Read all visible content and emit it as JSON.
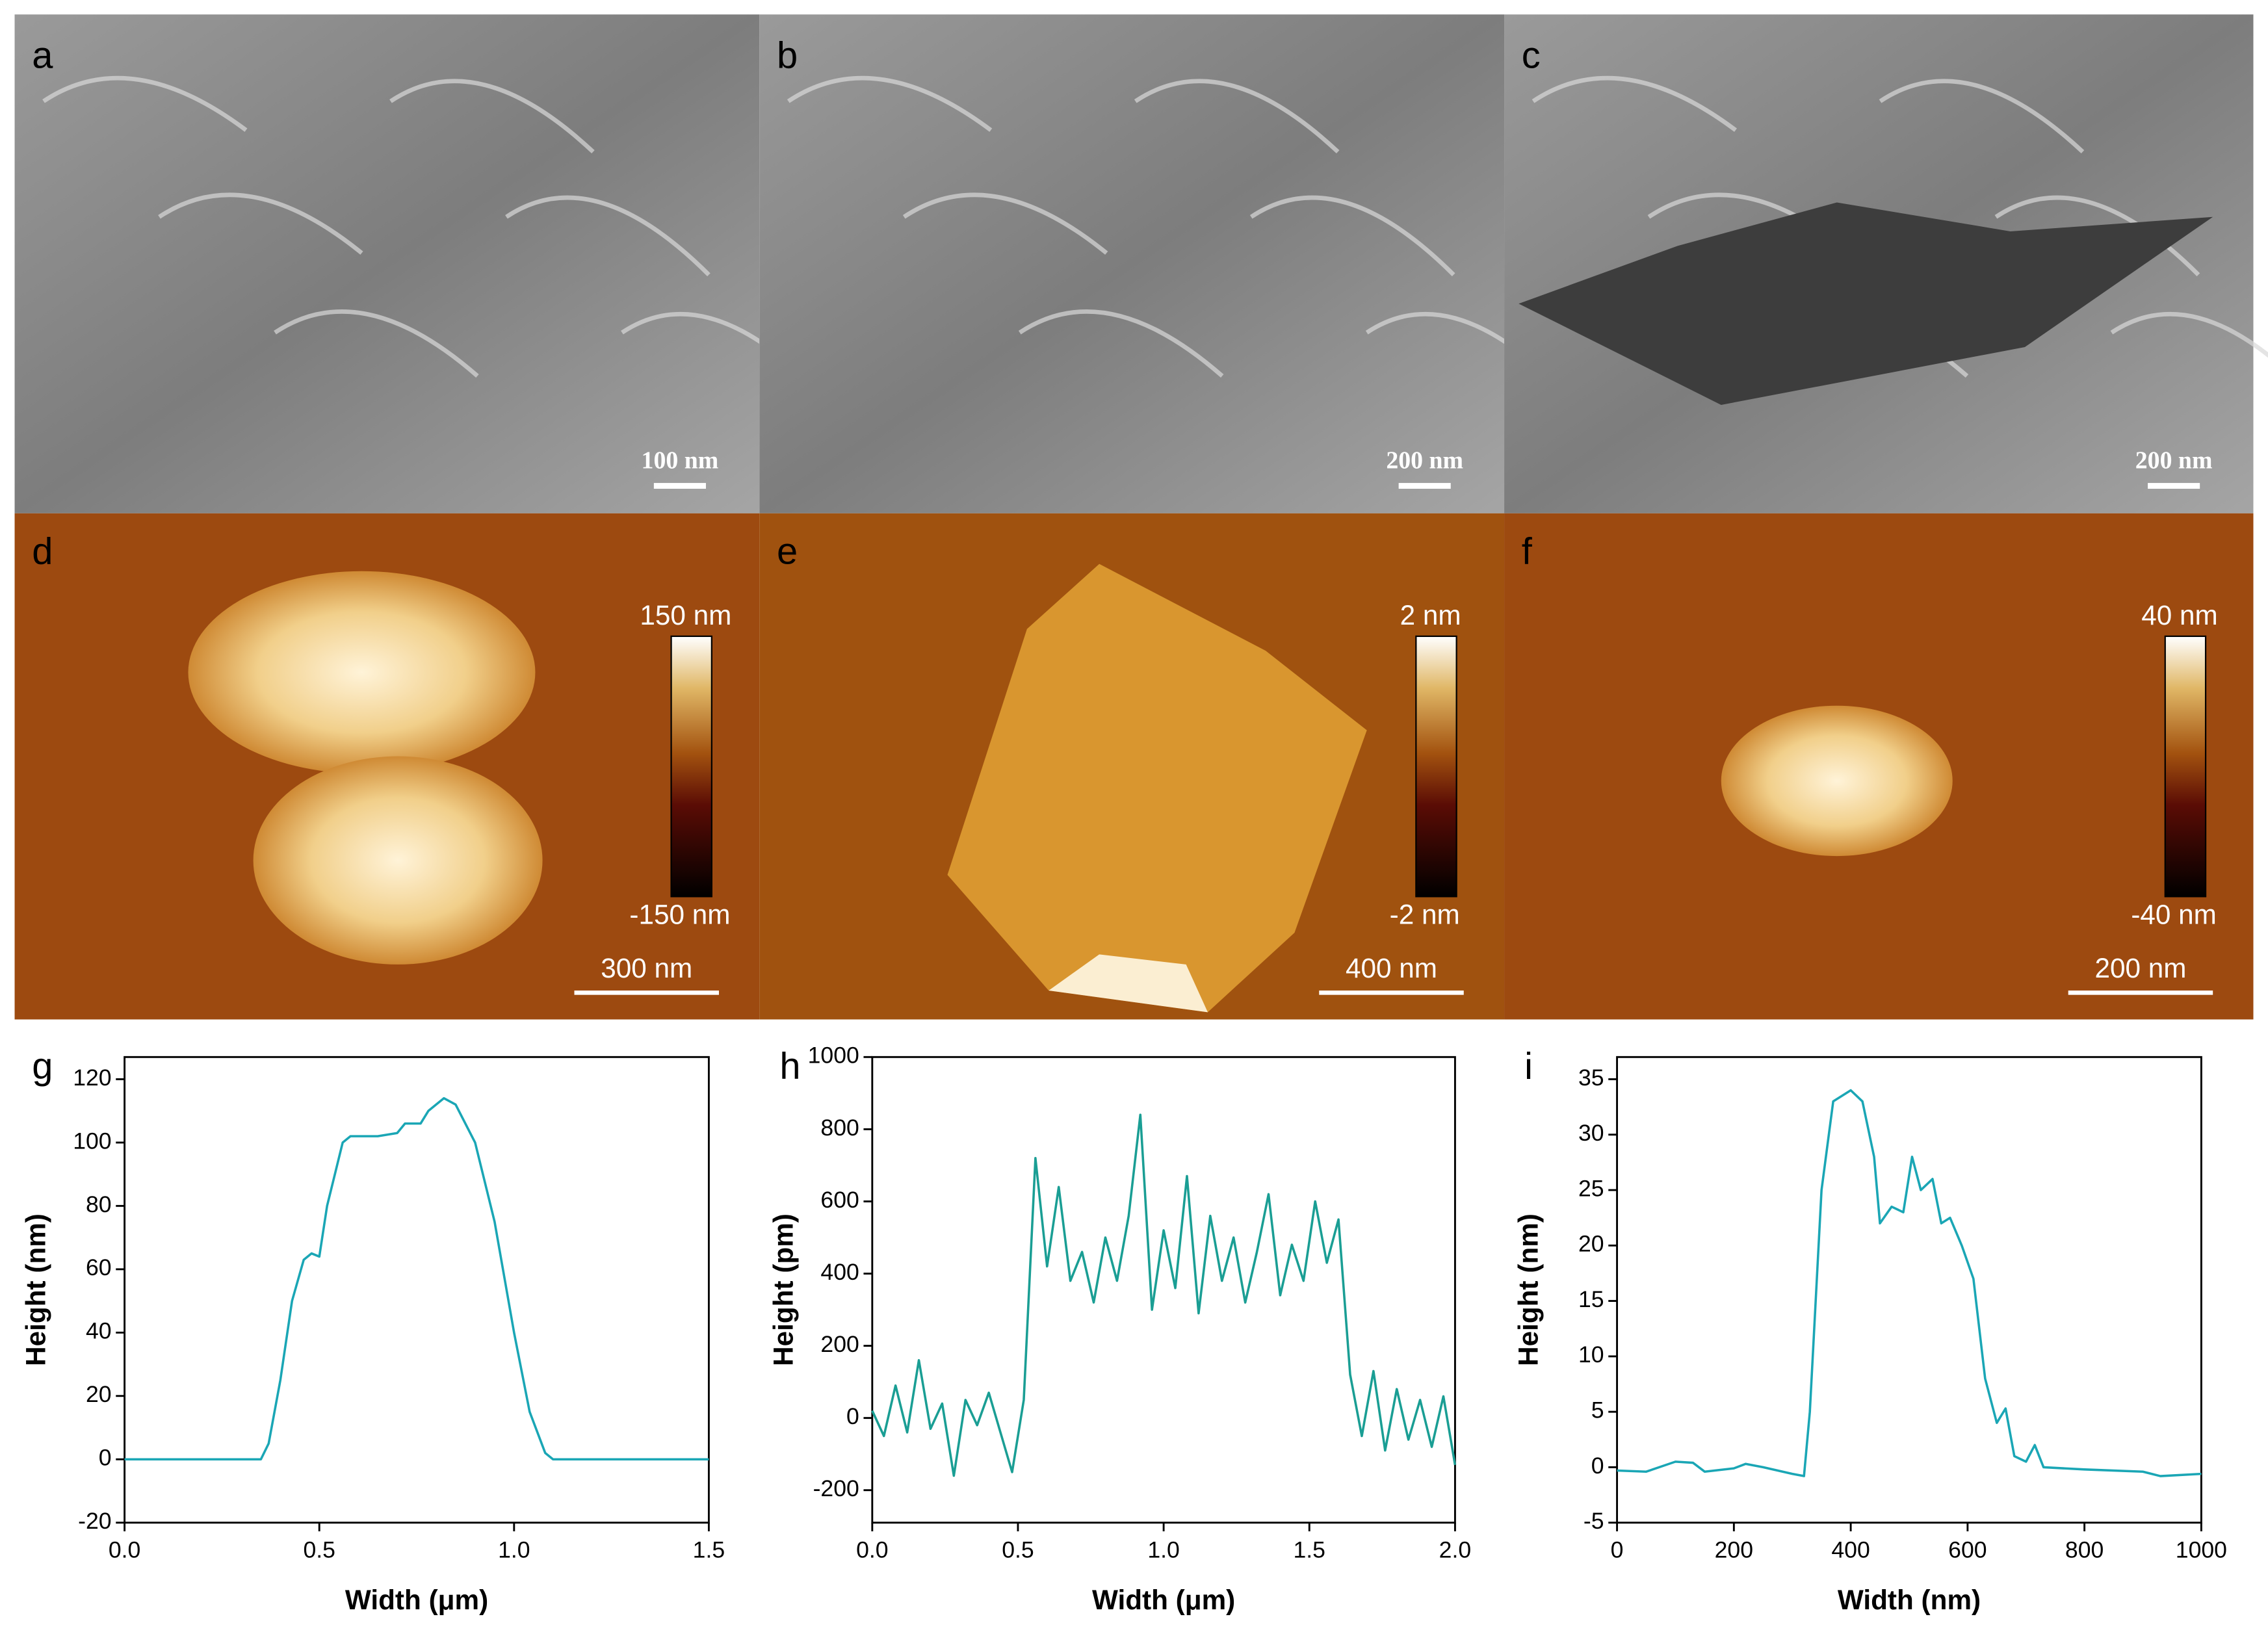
{
  "image_panels": [
    {
      "label": "a",
      "scale_bar": "100 nm"
    },
    {
      "label": "b",
      "scale_bar": "200 nm"
    },
    {
      "label": "c",
      "scale_bar": "200 nm"
    },
    {
      "label": "d",
      "scale_bar": "300 nm",
      "colorbar_max": "150 nm",
      "colorbar_min": "-150 nm"
    },
    {
      "label": "e",
      "scale_bar": "400 nm",
      "colorbar_max": "2 nm",
      "colorbar_min": "-2 nm"
    },
    {
      "label": "f",
      "scale_bar": "200 nm",
      "colorbar_max": "40 nm",
      "colorbar_min": "-40 nm"
    }
  ],
  "chart_data": [
    {
      "type": "line",
      "panel_label": "g",
      "xlabel": "Width (μm)",
      "ylabel": "Height (nm)",
      "xlim": [
        0,
        1.5
      ],
      "ylim": [
        -20,
        127
      ],
      "xticks": [
        {
          "value": 0,
          "label": "0.0"
        },
        {
          "value": 0.5,
          "label": "0.5"
        },
        {
          "value": 1,
          "label": "1.0"
        },
        {
          "value": 1.5,
          "label": "1.5"
        }
      ],
      "yticks": [
        -20,
        0,
        20,
        40,
        60,
        80,
        100,
        120
      ],
      "x": [
        0,
        0.35,
        0.37,
        0.4,
        0.43,
        0.46,
        0.48,
        0.5,
        0.52,
        0.56,
        0.58,
        0.65,
        0.7,
        0.72,
        0.76,
        0.78,
        0.82,
        0.85,
        0.9,
        0.95,
        1.0,
        1.04,
        1.08,
        1.1,
        1.5
      ],
      "series": [
        {
          "color": "#1aa6b5",
          "values": [
            0,
            0,
            5,
            25,
            50,
            63,
            65,
            64,
            80,
            100,
            102,
            102,
            103,
            106,
            106,
            110,
            114,
            112,
            100,
            75,
            40,
            15,
            2,
            0,
            0
          ]
        }
      ]
    },
    {
      "type": "line",
      "panel_label": "h",
      "xlabel": "Width (μm)",
      "ylabel": "Height (pm)",
      "xlim": [
        0,
        2
      ],
      "ylim": [
        -290,
        1000
      ],
      "xticks": [
        {
          "value": 0,
          "label": "0.0"
        },
        {
          "value": 0.5,
          "label": "0.5"
        },
        {
          "value": 1,
          "label": "1.0"
        },
        {
          "value": 1.5,
          "label": "1.5"
        },
        {
          "value": 2,
          "label": "2.0"
        }
      ],
      "yticks": [
        -200,
        0,
        200,
        400,
        600,
        800,
        1000
      ],
      "x": [
        0,
        0.04,
        0.08,
        0.12,
        0.16,
        0.2,
        0.24,
        0.28,
        0.32,
        0.36,
        0.4,
        0.44,
        0.48,
        0.52,
        0.56,
        0.6,
        0.64,
        0.68,
        0.72,
        0.76,
        0.8,
        0.84,
        0.88,
        0.92,
        0.96,
        1.0,
        1.04,
        1.08,
        1.12,
        1.16,
        1.2,
        1.24,
        1.28,
        1.32,
        1.36,
        1.4,
        1.44,
        1.48,
        1.52,
        1.56,
        1.6,
        1.64,
        1.68,
        1.72,
        1.76,
        1.8,
        1.84,
        1.88,
        1.92,
        1.96,
        2.0
      ],
      "series": [
        {
          "color": "#1a9e94",
          "values": [
            20,
            -50,
            90,
            -40,
            160,
            -30,
            40,
            -160,
            50,
            -20,
            70,
            -40,
            -150,
            50,
            720,
            420,
            640,
            380,
            460,
            320,
            500,
            380,
            560,
            840,
            300,
            520,
            360,
            670,
            290,
            560,
            380,
            500,
            320,
            460,
            620,
            340,
            480,
            380,
            600,
            430,
            550,
            120,
            -50,
            130,
            -90,
            80,
            -60,
            50,
            -80,
            60,
            -130
          ]
        }
      ]
    },
    {
      "type": "line",
      "panel_label": "i",
      "xlabel": "Width (nm)",
      "ylabel": "Height (nm)",
      "xlim": [
        0,
        1000
      ],
      "ylim": [
        -5,
        37
      ],
      "xticks": [
        0,
        200,
        400,
        600,
        800,
        1000
      ],
      "yticks": [
        -5,
        0,
        5,
        10,
        15,
        20,
        25,
        30,
        35
      ],
      "x": [
        0,
        50,
        100,
        130,
        150,
        200,
        220,
        250,
        300,
        320,
        330,
        350,
        370,
        400,
        420,
        440,
        450,
        470,
        490,
        505,
        520,
        540,
        555,
        570,
        590,
        610,
        630,
        650,
        665,
        680,
        700,
        715,
        730,
        800,
        900,
        930,
        1000
      ],
      "series": [
        {
          "color": "#1aa6b5",
          "values": [
            -0.3,
            -0.4,
            0.5,
            0.4,
            -0.4,
            -0.1,
            0.3,
            0,
            -0.6,
            -0.8,
            5,
            25,
            33,
            34,
            33,
            28,
            22,
            23.5,
            23,
            28,
            25,
            26,
            22,
            22.5,
            20,
            17,
            8,
            4,
            5.3,
            1,
            0.5,
            2,
            0,
            -0.2,
            -0.4,
            -0.8,
            -0.6
          ]
        }
      ]
    }
  ]
}
